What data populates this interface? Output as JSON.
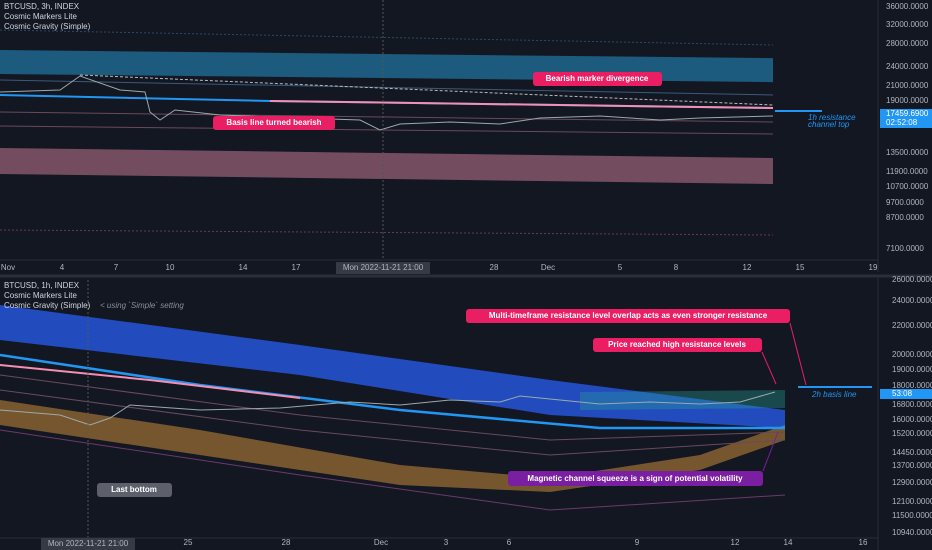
{
  "panels": [
    {
      "header": [
        "BTCUSD, 3h, INDEX",
        "Cosmic Markers Lite",
        "Cosmic Gravity (Simple)"
      ],
      "y_labels": [
        "36000.0000",
        "32000.0000",
        "28000.0000",
        "24000.0000",
        "21000.0000",
        "19000.0000",
        "13500.0000",
        "11900.0000",
        "10700.0000",
        "9700.0000",
        "8700.0000",
        "7100.0000"
      ],
      "price_tag": [
        "17459.6900",
        "02:52:08"
      ],
      "x_labels": [
        "Nov",
        "4",
        "7",
        "10",
        "14",
        "17",
        "28",
        "Dec",
        "5",
        "8",
        "12",
        "15",
        "19"
      ],
      "crosshair_label": "Mon 2022-11-21   21:00",
      "annotations": [
        "Bearish marker divergence",
        "Basis line turned bearish"
      ],
      "side_note": [
        "1h resistance",
        "channel top"
      ]
    },
    {
      "header": [
        "BTCUSD, 1h, INDEX",
        "Cosmic Markers Lite",
        "Cosmic Gravity (Simple)"
      ],
      "setting_note": "< using `Simple` setting",
      "y_labels": [
        "26000.0000",
        "24000.0000",
        "22000.0000",
        "20000.0000",
        "19000.0000",
        "18000.0000",
        "16800.0000",
        "16000.0000",
        "15200.0000",
        "14450.0000",
        "13700.0000",
        "12900.0000",
        "12100.0000",
        "11500.0000",
        "10940.0000"
      ],
      "price_tag": "53:08",
      "x_labels": [
        "25",
        "28",
        "Dec",
        "3",
        "6",
        "9",
        "12",
        "14",
        "16"
      ],
      "crosshair_label": "Mon 2022-11-21   21:00",
      "annotations": [
        "Multi-timeframe resistance level overlap acts as even stronger resistance",
        "Price reached high resistance levels",
        "Magnetic channel squeeze is a sign of potential volatility",
        "Last bottom"
      ],
      "side_note": "2h basis line"
    }
  ]
}
